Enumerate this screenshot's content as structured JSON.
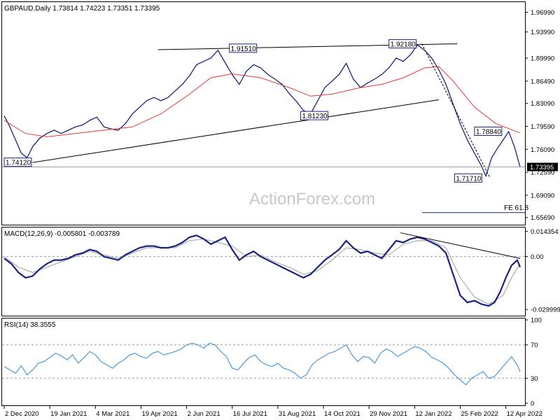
{
  "chart_data": [
    {
      "type": "line",
      "panel": "price",
      "header": "GBPAUD,Daily  1.73814 1.74223 1.73351 1.73395",
      "watermark": "ActionForex.com",
      "ylim": [
        1.6459,
        1.9854
      ],
      "yticks": [
        "1.96990",
        "1.93990",
        "1.89990",
        "1.86490",
        "1.83090",
        "1.79590",
        "1.76090",
        "1.72590",
        "1.69090",
        "1.65690"
      ],
      "ytick_values": [
        1.9699,
        1.9399,
        1.8999,
        1.8649,
        1.8309,
        1.7959,
        1.7609,
        1.7259,
        1.6909,
        1.6569
      ],
      "last_price": "1.73395",
      "last_value": 1.73395,
      "fe_label": "FE 61.8",
      "fe_value": 1.6664,
      "price_points": [
        [
          0,
          1.812
        ],
        [
          4,
          1.795
        ],
        [
          8,
          1.775
        ],
        [
          12,
          1.755
        ],
        [
          16,
          1.748
        ],
        [
          20,
          1.765
        ],
        [
          25,
          1.778
        ],
        [
          30,
          1.785
        ],
        [
          35,
          1.79
        ],
        [
          40,
          1.785
        ],
        [
          45,
          1.79
        ],
        [
          50,
          1.795
        ],
        [
          55,
          1.798
        ],
        [
          60,
          1.805
        ],
        [
          65,
          1.81
        ],
        [
          70,
          1.795
        ],
        [
          75,
          1.792
        ],
        [
          80,
          1.79
        ],
        [
          85,
          1.8
        ],
        [
          90,
          1.815
        ],
        [
          95,
          1.825
        ],
        [
          100,
          1.835
        ],
        [
          105,
          1.84
        ],
        [
          110,
          1.835
        ],
        [
          115,
          1.84
        ],
        [
          120,
          1.85
        ],
        [
          125,
          1.86
        ],
        [
          130,
          1.873
        ],
        [
          135,
          1.89
        ],
        [
          140,
          1.895
        ],
        [
          145,
          1.9
        ],
        [
          150,
          1.912
        ],
        [
          155,
          1.893
        ],
        [
          160,
          1.875
        ],
        [
          165,
          1.86
        ],
        [
          170,
          1.88
        ],
        [
          175,
          1.89
        ],
        [
          180,
          1.885
        ],
        [
          185,
          1.875
        ],
        [
          190,
          1.868
        ],
        [
          195,
          1.86
        ],
        [
          200,
          1.846
        ],
        [
          205,
          1.834
        ],
        [
          210,
          1.82
        ],
        [
          215,
          1.815
        ],
        [
          220,
          1.835
        ],
        [
          225,
          1.855
        ],
        [
          230,
          1.865
        ],
        [
          235,
          1.875
        ],
        [
          240,
          1.892
        ],
        [
          245,
          1.868
        ],
        [
          250,
          1.855
        ],
        [
          255,
          1.862
        ],
        [
          260,
          1.868
        ],
        [
          265,
          1.875
        ],
        [
          270,
          1.885
        ],
        [
          275,
          1.9
        ],
        [
          280,
          1.895
        ],
        [
          285,
          1.905
        ],
        [
          290,
          1.92
        ],
        [
          295,
          1.912
        ],
        [
          300,
          1.9
        ],
        [
          305,
          1.882
        ],
        [
          310,
          1.86
        ],
        [
          315,
          1.83
        ],
        [
          320,
          1.8
        ],
        [
          325,
          1.775
        ],
        [
          330,
          1.755
        ],
        [
          335,
          1.735
        ],
        [
          338,
          1.72
        ],
        [
          342,
          1.748
        ],
        [
          346,
          1.762
        ],
        [
          350,
          1.775
        ],
        [
          354,
          1.788
        ],
        [
          358,
          1.765
        ],
        [
          362,
          1.734
        ]
      ],
      "ma_points": [
        [
          0,
          1.805
        ],
        [
          15,
          1.785
        ],
        [
          30,
          1.78
        ],
        [
          50,
          1.785
        ],
        [
          70,
          1.79
        ],
        [
          90,
          1.795
        ],
        [
          110,
          1.815
        ],
        [
          130,
          1.845
        ],
        [
          145,
          1.87
        ],
        [
          160,
          1.876
        ],
        [
          180,
          1.87
        ],
        [
          200,
          1.855
        ],
        [
          215,
          1.842
        ],
        [
          230,
          1.845
        ],
        [
          250,
          1.855
        ],
        [
          265,
          1.86
        ],
        [
          280,
          1.87
        ],
        [
          295,
          1.885
        ],
        [
          305,
          1.887
        ],
        [
          315,
          1.865
        ],
        [
          330,
          1.825
        ],
        [
          345,
          1.8
        ],
        [
          362,
          1.786
        ]
      ],
      "trendlines": [
        {
          "from": [
            108,
            1.9128
          ],
          "to": [
            318,
            1.9218
          ]
        },
        {
          "from": [
            20,
            1.7408
          ],
          "to": [
            305,
            1.8365
          ]
        },
        {
          "from": [
            293,
            1.9218
          ],
          "to": [
            341,
            1.7171
          ],
          "dashed": true
        }
      ],
      "annotations": [
        {
          "label": "1.74120",
          "x": 0,
          "y": 1.7412
        },
        {
          "label": "1.91510",
          "x": 158,
          "y": 1.9151
        },
        {
          "label": "1.81230",
          "x": 208,
          "y": 1.8123
        },
        {
          "label": "1.92180",
          "x": 270,
          "y": 1.9218
        },
        {
          "label": "1.78840",
          "x": 330,
          "y": 1.7884
        },
        {
          "label": "1.71710",
          "x": 316,
          "y": 1.7171
        }
      ]
    },
    {
      "type": "line",
      "panel": "macd",
      "header": "MACD(12,26,9) -0.005801 -0.003789",
      "ylim": [
        -0.0335,
        0.0165
      ],
      "yticks": [
        "0.014354",
        "0.00",
        "-0.029999"
      ],
      "ytick_values": [
        0.014354,
        0.0,
        -0.029999
      ],
      "macd": [
        [
          0,
          -0.001
        ],
        [
          5,
          -0.004
        ],
        [
          10,
          -0.009
        ],
        [
          15,
          -0.012
        ],
        [
          20,
          -0.011
        ],
        [
          25,
          -0.007
        ],
        [
          30,
          -0.004
        ],
        [
          35,
          -0.002
        ],
        [
          40,
          -0.002
        ],
        [
          45,
          -0.001
        ],
        [
          50,
          0.001
        ],
        [
          55,
          0.002
        ],
        [
          60,
          0.004
        ],
        [
          65,
          0.003
        ],
        [
          70,
          0.0
        ],
        [
          75,
          -0.001
        ],
        [
          80,
          -0.002
        ],
        [
          85,
          0.001
        ],
        [
          90,
          0.003
        ],
        [
          95,
          0.005
        ],
        [
          100,
          0.006
        ],
        [
          105,
          0.006
        ],
        [
          110,
          0.005
        ],
        [
          115,
          0.005
        ],
        [
          120,
          0.006
        ],
        [
          125,
          0.008
        ],
        [
          130,
          0.011
        ],
        [
          135,
          0.012
        ],
        [
          140,
          0.01
        ],
        [
          145,
          0.007
        ],
        [
          150,
          0.009
        ],
        [
          155,
          0.011
        ],
        [
          160,
          0.004
        ],
        [
          165,
          -0.002
        ],
        [
          170,
          0.001
        ],
        [
          175,
          0.003
        ],
        [
          180,
          0.0
        ],
        [
          185,
          -0.002
        ],
        [
          190,
          -0.004
        ],
        [
          195,
          -0.006
        ],
        [
          200,
          -0.008
        ],
        [
          205,
          -0.01
        ],
        [
          210,
          -0.012
        ],
        [
          215,
          -0.01
        ],
        [
          220,
          -0.006
        ],
        [
          225,
          -0.002
        ],
        [
          230,
          0.001
        ],
        [
          235,
          0.004
        ],
        [
          240,
          0.009
        ],
        [
          245,
          0.005
        ],
        [
          250,
          0.002
        ],
        [
          255,
          0.003
        ],
        [
          260,
          0.001
        ],
        [
          265,
          -0.001
        ],
        [
          270,
          0.004
        ],
        [
          275,
          0.009
        ],
        [
          280,
          0.008
        ],
        [
          285,
          0.01
        ],
        [
          290,
          0.011
        ],
        [
          295,
          0.01
        ],
        [
          300,
          0.008
        ],
        [
          305,
          0.006
        ],
        [
          310,
          0.002
        ],
        [
          315,
          -0.01
        ],
        [
          320,
          -0.022
        ],
        [
          325,
          -0.026
        ],
        [
          330,
          -0.025
        ],
        [
          335,
          -0.027
        ],
        [
          340,
          -0.028
        ],
        [
          344,
          -0.026
        ],
        [
          348,
          -0.02
        ],
        [
          352,
          -0.012
        ],
        [
          356,
          -0.005
        ],
        [
          360,
          -0.002
        ],
        [
          362,
          -0.006
        ]
      ],
      "signal": [
        [
          0,
          0.0
        ],
        [
          10,
          -0.006
        ],
        [
          20,
          -0.009
        ],
        [
          30,
          -0.006
        ],
        [
          40,
          -0.003
        ],
        [
          50,
          0.0
        ],
        [
          60,
          0.003
        ],
        [
          70,
          0.001
        ],
        [
          80,
          -0.001
        ],
        [
          90,
          0.002
        ],
        [
          100,
          0.005
        ],
        [
          110,
          0.005
        ],
        [
          120,
          0.005
        ],
        [
          130,
          0.009
        ],
        [
          140,
          0.01
        ],
        [
          150,
          0.008
        ],
        [
          160,
          0.006
        ],
        [
          170,
          0.0
        ],
        [
          180,
          0.001
        ],
        [
          190,
          -0.003
        ],
        [
          200,
          -0.006
        ],
        [
          210,
          -0.01
        ],
        [
          220,
          -0.008
        ],
        [
          230,
          -0.002
        ],
        [
          240,
          0.005
        ],
        [
          250,
          0.004
        ],
        [
          260,
          0.002
        ],
        [
          270,
          0.001
        ],
        [
          280,
          0.007
        ],
        [
          290,
          0.009
        ],
        [
          300,
          0.009
        ],
        [
          310,
          0.005
        ],
        [
          320,
          -0.012
        ],
        [
          330,
          -0.023
        ],
        [
          340,
          -0.027
        ],
        [
          350,
          -0.022
        ],
        [
          356,
          -0.012
        ],
        [
          362,
          -0.004
        ]
      ],
      "trendline": {
        "from": [
          278,
          0.0135
        ],
        "to": [
          362,
          -0.001
        ]
      }
    },
    {
      "type": "line",
      "panel": "rsi",
      "header": "RSI(14) 38.3555",
      "ylim": [
        0,
        100
      ],
      "yticks": [
        "100",
        "70",
        "30",
        "0"
      ],
      "ytick_values": [
        100,
        70,
        30,
        0
      ],
      "levels": [
        70,
        30
      ],
      "rsi": [
        [
          0,
          44
        ],
        [
          4,
          40
        ],
        [
          8,
          36
        ],
        [
          12,
          45
        ],
        [
          16,
          34
        ],
        [
          20,
          40
        ],
        [
          24,
          48
        ],
        [
          28,
          50
        ],
        [
          32,
          55
        ],
        [
          36,
          60
        ],
        [
          40,
          57
        ],
        [
          44,
          52
        ],
        [
          48,
          58
        ],
        [
          52,
          48
        ],
        [
          56,
          55
        ],
        [
          60,
          62
        ],
        [
          64,
          58
        ],
        [
          68,
          50
        ],
        [
          72,
          46
        ],
        [
          76,
          42
        ],
        [
          80,
          48
        ],
        [
          84,
          52
        ],
        [
          88,
          58
        ],
        [
          92,
          60
        ],
        [
          96,
          56
        ],
        [
          100,
          54
        ],
        [
          104,
          60
        ],
        [
          108,
          62
        ],
        [
          112,
          58
        ],
        [
          116,
          60
        ],
        [
          120,
          62
        ],
        [
          124,
          65
        ],
        [
          128,
          70
        ],
        [
          132,
          72
        ],
        [
          136,
          70
        ],
        [
          140,
          66
        ],
        [
          144,
          72
        ],
        [
          148,
          70
        ],
        [
          152,
          62
        ],
        [
          156,
          56
        ],
        [
          160,
          42
        ],
        [
          164,
          40
        ],
        [
          168,
          48
        ],
        [
          172,
          55
        ],
        [
          176,
          58
        ],
        [
          180,
          50
        ],
        [
          184,
          46
        ],
        [
          188,
          44
        ],
        [
          192,
          48
        ],
        [
          196,
          42
        ],
        [
          200,
          40
        ],
        [
          204,
          36
        ],
        [
          208,
          30
        ],
        [
          212,
          34
        ],
        [
          216,
          46
        ],
        [
          220,
          52
        ],
        [
          224,
          56
        ],
        [
          228,
          60
        ],
        [
          232,
          62
        ],
        [
          236,
          66
        ],
        [
          240,
          70
        ],
        [
          244,
          58
        ],
        [
          248,
          50
        ],
        [
          252,
          56
        ],
        [
          256,
          55
        ],
        [
          260,
          48
        ],
        [
          264,
          60
        ],
        [
          268,
          65
        ],
        [
          272,
          62
        ],
        [
          276,
          56
        ],
        [
          280,
          60
        ],
        [
          284,
          64
        ],
        [
          288,
          68
        ],
        [
          292,
          66
        ],
        [
          296,
          62
        ],
        [
          300,
          55
        ],
        [
          304,
          52
        ],
        [
          308,
          48
        ],
        [
          312,
          42
        ],
        [
          316,
          34
        ],
        [
          320,
          28
        ],
        [
          324,
          22
        ],
        [
          328,
          30
        ],
        [
          332,
          34
        ],
        [
          336,
          38
        ],
        [
          340,
          30
        ],
        [
          344,
          32
        ],
        [
          348,
          40
        ],
        [
          352,
          48
        ],
        [
          356,
          56
        ],
        [
          360,
          46
        ],
        [
          362,
          38
        ]
      ]
    }
  ],
  "xaxis": {
    "labels": [
      "2 Dec 2020",
      "19 Jan 2021",
      "4 Mar 2021",
      "19 Apr 2021",
      "2 Jun 2021",
      "16 Jul 2021",
      "31 Aug 2021",
      "14 Oct 2021",
      "29 Nov 2021",
      "12 Jan 2022",
      "25 Feb 2022",
      "12 Apr 2022"
    ],
    "positions": [
      0,
      32,
      64,
      96,
      128,
      160,
      192,
      224,
      256,
      288,
      320,
      352
    ]
  },
  "colors": {
    "price": "#1a237e",
    "ma": "#e53935",
    "trend": "#000000",
    "macd": "#1a237e",
    "signal": "#9e9e9e",
    "rsi": "#2b8ad6",
    "box_border": "#1a237e",
    "grid": "#9e9e9e"
  }
}
